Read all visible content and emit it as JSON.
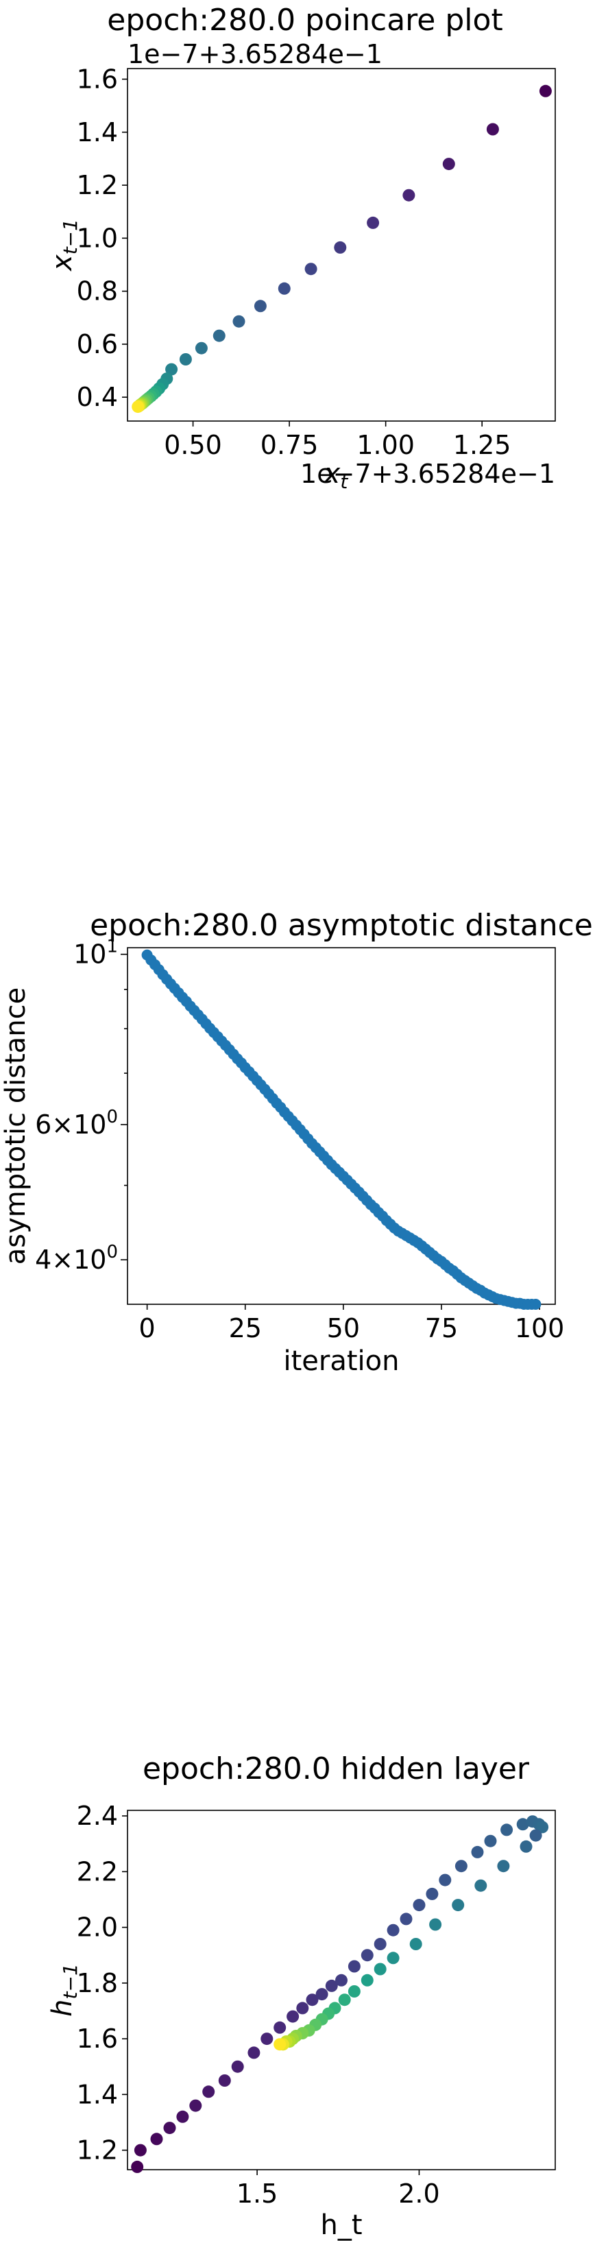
{
  "charts": [
    {
      "title": "epoch:280.0 poincare plot",
      "x_offset": "1e−7+3.65284e−1",
      "y_offset": "1e−7+3.65284e−1",
      "xlabel_base": "x",
      "xlabel_sub": "t",
      "ylabel_base": "x",
      "ylabel_sub": "t−1",
      "x_ticks": [
        "0.50",
        "0.75",
        "1.00",
        "1.25"
      ],
      "y_ticks": [
        "0.4",
        "0.6",
        "0.8",
        "1.0",
        "1.2",
        "1.4",
        "1.6"
      ]
    },
    {
      "title": "epoch:280.0 asymptotic distance",
      "xlabel": "iteration",
      "ylabel": "asymptotic distance",
      "x_ticks": [
        "0",
        "25",
        "50",
        "75",
        "100"
      ],
      "y_ticks": [
        {
          "base": "10",
          "sup": "1"
        },
        {
          "base": "6×10",
          "sup": "0"
        },
        {
          "base": "4×10",
          "sup": "0"
        }
      ]
    },
    {
      "title": "epoch:280.0 hidden layer",
      "xlabel": "h_t",
      "ylabel_base": "h",
      "ylabel_sub": "t−1",
      "x_ticks": [
        "1.5",
        "2.0"
      ],
      "y_ticks": [
        "1.2",
        "1.4",
        "1.6",
        "1.8",
        "2.0",
        "2.2",
        "2.4"
      ]
    }
  ],
  "chart_data": [
    {
      "type": "scatter",
      "title": "epoch:280.0 poincare plot",
      "xlabel": "x_t",
      "ylabel": "x_{t-1}",
      "offset": "1e-7+3.65284e-1",
      "xlim": [
        0.33,
        1.44
      ],
      "ylim": [
        0.31,
        1.64
      ],
      "colormap": "viridis",
      "color_order": "early iterations dark purple, late iterations yellow",
      "x": [
        1.415,
        1.278,
        1.164,
        1.06,
        0.967,
        0.882,
        0.806,
        0.737,
        0.675,
        0.619,
        0.568,
        0.522,
        0.481,
        0.444,
        0.432,
        0.421,
        0.412,
        0.404,
        0.397,
        0.391,
        0.385,
        0.38,
        0.376,
        0.372,
        0.369,
        0.366,
        0.363,
        0.361,
        0.359,
        0.357
      ],
      "y": [
        1.555,
        1.411,
        1.28,
        1.162,
        1.058,
        0.965,
        0.884,
        0.81,
        0.744,
        0.686,
        0.632,
        0.585,
        0.543,
        0.505,
        0.47,
        0.449,
        0.433,
        0.421,
        0.412,
        0.404,
        0.397,
        0.391,
        0.386,
        0.381,
        0.377,
        0.374,
        0.371,
        0.368,
        0.366,
        0.364
      ]
    },
    {
      "type": "scatter",
      "title": "epoch:280.0 asymptotic distance",
      "xlabel": "iteration",
      "ylabel": "asymptotic distance",
      "yscale": "log",
      "xlim": [
        -5,
        104
      ],
      "ylim": [
        3.5,
        10.2
      ],
      "color": "#1f77b4",
      "x": [
        0,
        1,
        2,
        3,
        4,
        5,
        6,
        7,
        8,
        9,
        10,
        11,
        12,
        13,
        14,
        15,
        16,
        17,
        18,
        19,
        20,
        21,
        22,
        23,
        24,
        25,
        26,
        27,
        28,
        29,
        30,
        31,
        32,
        33,
        34,
        35,
        36,
        37,
        38,
        39,
        40,
        41,
        42,
        43,
        44,
        45,
        46,
        47,
        48,
        49,
        50,
        51,
        52,
        53,
        54,
        55,
        56,
        57,
        58,
        59,
        60,
        61,
        62,
        63,
        64,
        65,
        66,
        67,
        68,
        69,
        70,
        71,
        72,
        73,
        74,
        75,
        76,
        77,
        78,
        79,
        80,
        81,
        82,
        83,
        84,
        85,
        86,
        87,
        88,
        89,
        90,
        91,
        92,
        93,
        94,
        95,
        96,
        97,
        98,
        99
      ],
      "y": [
        9.98,
        9.83,
        9.69,
        9.55,
        9.41,
        9.28,
        9.15,
        9.03,
        8.91,
        8.79,
        8.68,
        8.56,
        8.45,
        8.34,
        8.23,
        8.12,
        8.01,
        7.91,
        7.81,
        7.71,
        7.61,
        7.51,
        7.41,
        7.31,
        7.22,
        7.12,
        7.03,
        6.94,
        6.85,
        6.76,
        6.67,
        6.58,
        6.49,
        6.4,
        6.32,
        6.23,
        6.15,
        6.07,
        5.99,
        5.91,
        5.83,
        5.75,
        5.67,
        5.6,
        5.53,
        5.46,
        5.39,
        5.32,
        5.26,
        5.2,
        5.14,
        5.08,
        5.02,
        4.96,
        4.9,
        4.84,
        4.78,
        4.72,
        4.67,
        4.61,
        4.56,
        4.5,
        4.45,
        4.4,
        4.36,
        4.33,
        4.3,
        4.27,
        4.24,
        4.21,
        4.17,
        4.13,
        4.09,
        4.05,
        4.01,
        3.98,
        3.94,
        3.9,
        3.87,
        3.83,
        3.79,
        3.76,
        3.73,
        3.7,
        3.67,
        3.65,
        3.62,
        3.6,
        3.58,
        3.56,
        3.55,
        3.54,
        3.53,
        3.52,
        3.51,
        3.51,
        3.5,
        3.5,
        3.5,
        3.5
      ]
    },
    {
      "type": "scatter",
      "title": "epoch:280.0 hidden layer",
      "xlabel": "h_t",
      "ylabel": "h_{t-1}",
      "xlim": [
        1.1,
        2.42
      ],
      "ylim": [
        1.13,
        2.42
      ],
      "colormap": "viridis",
      "color_order": "early iterations dark purple, late iterations yellow",
      "series": [
        {
          "name": "",
          "x": [
            1.13,
            1.14,
            1.19,
            1.23,
            1.27,
            1.31,
            1.35,
            1.4,
            1.44,
            1.49,
            1.53,
            1.57,
            1.61,
            1.64,
            1.67,
            1.7,
            1.73,
            1.76,
            1.8,
            1.84,
            1.88,
            1.92,
            1.96,
            2.0,
            2.04,
            2.08,
            2.13,
            2.18,
            2.22,
            2.27,
            2.32,
            2.35,
            2.37,
            2.38
          ],
          "y": [
            1.14,
            1.2,
            1.24,
            1.28,
            1.32,
            1.36,
            1.41,
            1.45,
            1.5,
            1.55,
            1.6,
            1.64,
            1.68,
            1.71,
            1.74,
            1.76,
            1.79,
            1.81,
            1.86,
            1.9,
            1.94,
            1.99,
            2.03,
            2.08,
            2.12,
            2.17,
            2.22,
            2.27,
            2.31,
            2.35,
            2.37,
            2.38,
            2.37,
            2.36
          ]
        },
        {
          "name": "",
          "x": [
            2.36,
            2.33,
            2.26,
            2.19,
            2.12,
            2.05,
            1.99,
            1.92,
            1.88,
            1.84,
            1.8,
            1.77,
            1.74,
            1.72,
            1.7,
            1.68,
            1.66,
            1.64,
            1.62,
            1.61,
            1.6,
            1.59,
            1.58,
            1.58,
            1.57
          ],
          "y": [
            2.33,
            2.29,
            2.22,
            2.15,
            2.08,
            2.01,
            1.94,
            1.89,
            1.85,
            1.81,
            1.77,
            1.74,
            1.71,
            1.69,
            1.67,
            1.65,
            1.63,
            1.62,
            1.61,
            1.6,
            1.59,
            1.59,
            1.58,
            1.58,
            1.58
          ]
        }
      ]
    }
  ]
}
